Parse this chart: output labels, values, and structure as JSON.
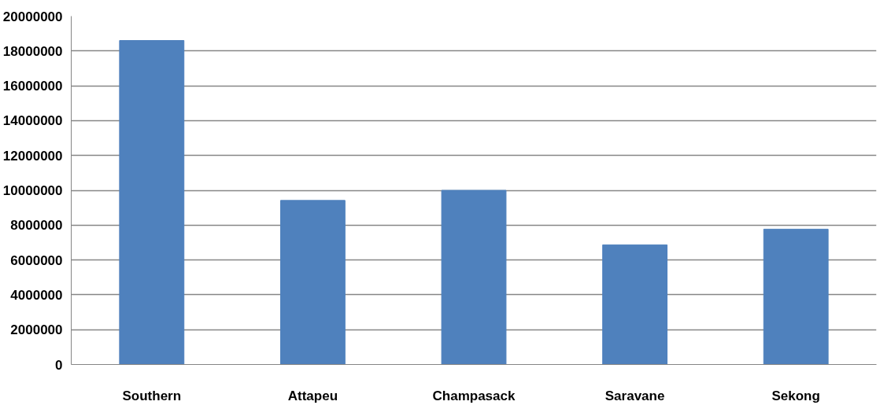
{
  "chart_data": {
    "type": "bar",
    "categories": [
      "Southern",
      "Attapeu",
      "Champasack",
      "Saravane",
      "Sekong"
    ],
    "values": [
      18600000,
      9420000,
      10000000,
      6870000,
      7770000
    ],
    "color": "#4f81bd",
    "ylim": [
      0,
      20000000
    ],
    "yticks": [
      0,
      2000000,
      4000000,
      6000000,
      8000000,
      10000000,
      12000000,
      14000000,
      16000000,
      18000000,
      20000000
    ],
    "grid": "y"
  }
}
